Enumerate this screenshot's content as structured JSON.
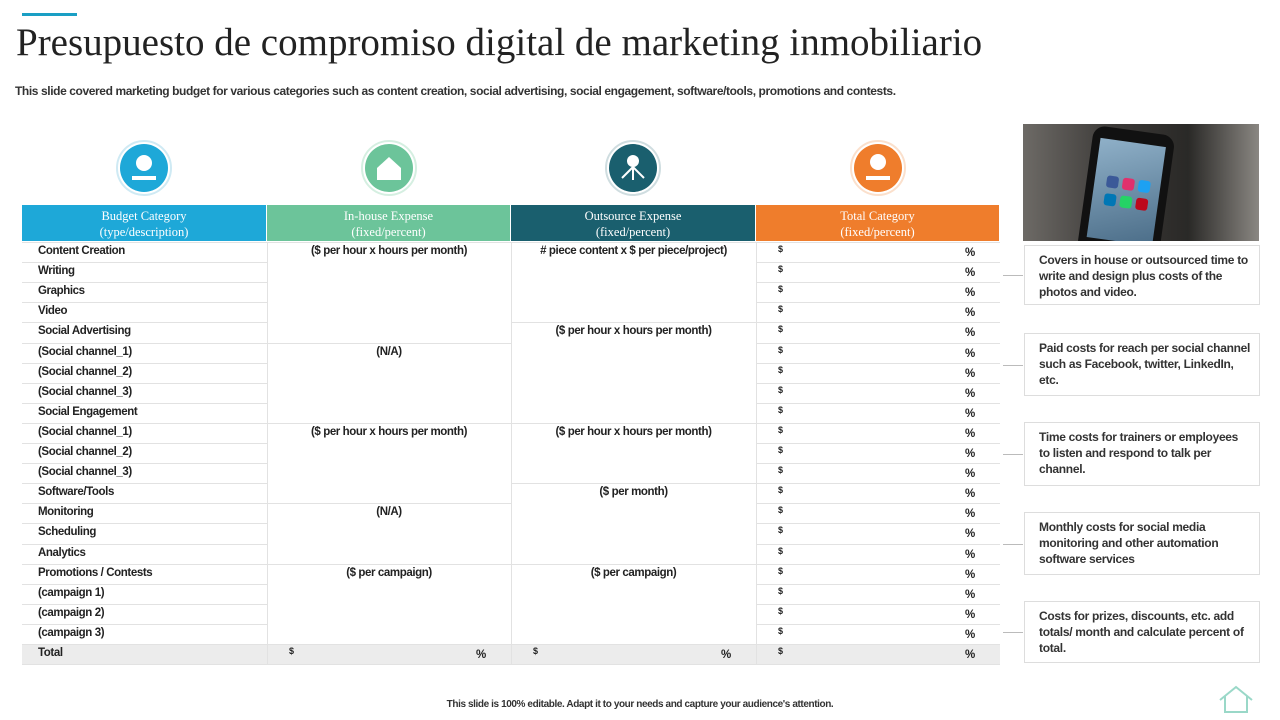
{
  "header": {
    "title": "Presupuesto de compromiso digital de marketing inmobiliario",
    "subtitle": "This slide covered marketing budget for various categories such as content creation, social advertising, social engagement, software/tools, promotions and contests."
  },
  "table": {
    "headers": [
      {
        "title": "Budget Category",
        "subtitle": "(type/description)"
      },
      {
        "title": "In-house Expense",
        "subtitle": "(fixed/percent)"
      },
      {
        "title": "Outsource Expense",
        "subtitle": "(fixed/percent)"
      },
      {
        "title": "Total Category",
        "subtitle": "(fixed/percent)"
      }
    ],
    "currency_symbol": "$",
    "percent_symbol": "%",
    "rows": [
      {
        "category": "Content Creation",
        "in_house": "($ per hour x  hours per month)",
        "outsource": "# piece content x $ per piece/project)"
      },
      {
        "category": "Writing"
      },
      {
        "category": "Graphics"
      },
      {
        "category": "Video"
      },
      {
        "category": "Social Advertising",
        "outsource": "($ per hour x  hours per month)"
      },
      {
        "category": "(Social channel_1)",
        "in_house": "(N/A)"
      },
      {
        "category": "(Social channel_2)"
      },
      {
        "category": "(Social channel_3)"
      },
      {
        "category": "Social Engagement"
      },
      {
        "category": "(Social channel_1)",
        "in_house": "($ per hour x  hours per month)",
        "outsource": "($ per hour x  hours per month)"
      },
      {
        "category": "(Social channel_2)"
      },
      {
        "category": "(Social channel_3)"
      },
      {
        "category": "Software/Tools",
        "outsource": "($ per month)"
      },
      {
        "category": "Monitoring",
        "in_house": "(N/A)"
      },
      {
        "category": "Scheduling"
      },
      {
        "category": "Analytics"
      },
      {
        "category": "Promotions / Contests",
        "in_house": "($ per campaign)",
        "outsource": "($ per campaign)"
      },
      {
        "category": "(campaign 1)"
      },
      {
        "category": "(campaign 2)"
      },
      {
        "category": "(campaign 3)"
      },
      {
        "category": "Total",
        "total_row": true
      }
    ]
  },
  "notes": [
    "Covers in house or outsourced time to write and design plus costs of the photos and video.",
    "Paid costs for reach per social channel such as Facebook, twitter, LinkedIn, etc.",
    "Time costs for trainers or employees to listen and respond to talk per channel.",
    "Monthly costs for social media monitoring and other automation software services",
    "Costs for prizes, discounts, etc. add totals/ month and calculate percent of total."
  ],
  "footer": "This slide is 100% editable. Adapt it to your needs and capture your audience's attention."
}
